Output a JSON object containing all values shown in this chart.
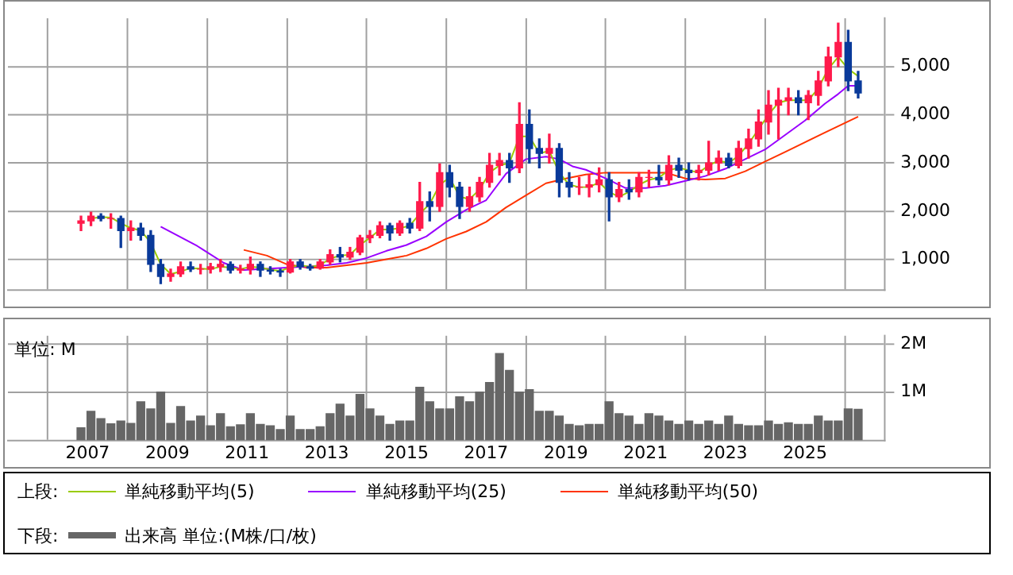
{
  "chart_data": [
    {
      "type": "candlestick",
      "legend_title": "上段:",
      "legend": "bottom",
      "grid": true,
      "tick_labels": "y",
      "marker": "none",
      "xlim": [
        "2005",
        "2027"
      ],
      "xticks": [
        "2007",
        "2009",
        "2011",
        "2013",
        "2015",
        "2017",
        "2019",
        "2021",
        "2023",
        "2025"
      ],
      "ylim": [
        370,
        6000
      ],
      "yticks": [
        {
          "value": 1000,
          "label": "1,000"
        },
        {
          "value": 2000,
          "label": "2,000"
        },
        {
          "value": 3000,
          "label": "3,000"
        },
        {
          "value": 4000,
          "label": "4,000"
        },
        {
          "value": 5000,
          "label": "5,000"
        }
      ],
      "x": [
        "2006-11",
        "2007-02",
        "2007-05",
        "2007-08",
        "2007-11",
        "2008-02",
        "2008-05",
        "2008-08",
        "2008-11",
        "2009-02",
        "2009-05",
        "2009-08",
        "2009-11",
        "2010-02",
        "2010-05",
        "2010-08",
        "2010-11",
        "2011-02",
        "2011-05",
        "2011-08",
        "2011-11",
        "2012-02",
        "2012-05",
        "2012-08",
        "2012-11",
        "2013-02",
        "2013-05",
        "2013-08",
        "2013-11",
        "2014-02",
        "2014-05",
        "2014-08",
        "2014-11",
        "2015-02",
        "2015-05",
        "2015-08",
        "2015-11",
        "2016-02",
        "2016-05",
        "2016-08",
        "2016-11",
        "2017-02",
        "2017-05",
        "2017-08",
        "2017-11",
        "2018-02",
        "2018-05",
        "2018-08",
        "2018-11",
        "2019-02",
        "2019-05",
        "2019-08",
        "2019-11",
        "2020-02",
        "2020-05",
        "2020-08",
        "2020-11",
        "2021-02",
        "2021-05",
        "2021-08",
        "2021-11",
        "2022-02",
        "2022-05",
        "2022-08",
        "2022-11",
        "2023-02",
        "2023-05",
        "2023-08",
        "2023-11",
        "2024-02",
        "2024-05",
        "2024-08",
        "2024-11",
        "2025-02",
        "2025-05",
        "2025-08",
        "2025-11",
        "2026-02",
        "2026-05"
      ],
      "ohlc": [
        [
          1750,
          1900,
          1600,
          1800
        ],
        [
          1800,
          1980,
          1700,
          1900
        ],
        [
          1900,
          1950,
          1800,
          1850
        ],
        [
          1850,
          1950,
          1650,
          1850
        ],
        [
          1850,
          1900,
          1250,
          1600
        ],
        [
          1600,
          1800,
          1400,
          1650
        ],
        [
          1650,
          1750,
          1400,
          1500
        ],
        [
          1500,
          1600,
          750,
          900
        ],
        [
          900,
          1000,
          500,
          650
        ],
        [
          650,
          800,
          550,
          700
        ],
        [
          700,
          950,
          650,
          850
        ],
        [
          850,
          950,
          750,
          800
        ],
        [
          800,
          900,
          700,
          800
        ],
        [
          800,
          920,
          720,
          850
        ],
        [
          850,
          1000,
          750,
          900
        ],
        [
          900,
          950,
          720,
          780
        ],
        [
          780,
          880,
          720,
          800
        ],
        [
          800,
          1050,
          700,
          900
        ],
        [
          900,
          950,
          650,
          780
        ],
        [
          780,
          850,
          700,
          760
        ],
        [
          760,
          800,
          650,
          740
        ],
        [
          740,
          1000,
          720,
          950
        ],
        [
          950,
          1000,
          800,
          850
        ],
        [
          850,
          900,
          780,
          820
        ],
        [
          820,
          1000,
          800,
          950
        ],
        [
          950,
          1200,
          900,
          1100
        ],
        [
          1100,
          1250,
          950,
          1050
        ],
        [
          1050,
          1250,
          1000,
          1150
        ],
        [
          1150,
          1500,
          1100,
          1450
        ],
        [
          1450,
          1600,
          1350,
          1500
        ],
        [
          1500,
          1780,
          1450,
          1700
        ],
        [
          1700,
          1750,
          1400,
          1550
        ],
        [
          1550,
          1800,
          1500,
          1750
        ],
        [
          1750,
          1850,
          1550,
          1650
        ],
        [
          1650,
          2600,
          1600,
          2200
        ],
        [
          2200,
          2400,
          1800,
          2100
        ],
        [
          2100,
          2980,
          2000,
          2800
        ],
        [
          2800,
          2950,
          2300,
          2500
        ],
        [
          2500,
          2600,
          1850,
          2100
        ],
        [
          2100,
          2500,
          2000,
          2300
        ],
        [
          2300,
          2700,
          2200,
          2600
        ],
        [
          2600,
          3200,
          2500,
          2950
        ],
        [
          2950,
          3200,
          2750,
          3050
        ],
        [
          3050,
          3200,
          2600,
          2900
        ],
        [
          2900,
          4250,
          2800,
          3800
        ],
        [
          3800,
          4100,
          3000,
          3300
        ],
        [
          3300,
          3500,
          2900,
          3200
        ],
        [
          3200,
          3600,
          3000,
          3300
        ],
        [
          3300,
          3400,
          2300,
          2600
        ],
        [
          2600,
          2800,
          2300,
          2500
        ],
        [
          2500,
          2700,
          2350,
          2500
        ],
        [
          2500,
          2750,
          2300,
          2550
        ],
        [
          2550,
          2900,
          2400,
          2650
        ],
        [
          2650,
          2800,
          1800,
          2300
        ],
        [
          2300,
          2600,
          2200,
          2450
        ],
        [
          2450,
          2650,
          2250,
          2400
        ],
        [
          2400,
          2800,
          2300,
          2700
        ],
        [
          2700,
          2850,
          2500,
          2700
        ],
        [
          2700,
          2950,
          2550,
          2650
        ],
        [
          2650,
          3150,
          2550,
          2950
        ],
        [
          2950,
          3100,
          2700,
          2850
        ],
        [
          2850,
          3000,
          2650,
          2800
        ],
        [
          2800,
          2950,
          2650,
          2850
        ],
        [
          2850,
          3450,
          2750,
          3000
        ],
        [
          3000,
          3250,
          2850,
          3100
        ],
        [
          3100,
          3200,
          2900,
          2950
        ],
        [
          2950,
          3450,
          2900,
          3300
        ],
        [
          3300,
          3700,
          3100,
          3500
        ],
        [
          3500,
          4100,
          3350,
          3850
        ],
        [
          3850,
          4500,
          3600,
          4200
        ],
        [
          4200,
          4550,
          3500,
          4300
        ],
        [
          4300,
          4550,
          4000,
          4350
        ],
        [
          4350,
          4500,
          4000,
          4250
        ],
        [
          4250,
          4500,
          3900,
          4400
        ],
        [
          4400,
          4900,
          4200,
          4700
        ],
        [
          4700,
          5400,
          4600,
          5200
        ],
        [
          5200,
          5900,
          5000,
          5500
        ],
        [
          5500,
          5750,
          4500,
          4700
        ],
        [
          4700,
          4900,
          4350,
          4450
        ]
      ],
      "series": [
        {
          "name": "単純移動平均(5)",
          "type": "line",
          "color": "#99cc00",
          "x": [
            "2007-02",
            "2007-05",
            "2007-08",
            "2007-11",
            "2008-02",
            "2008-05",
            "2008-08",
            "2008-11",
            "2009-02",
            "2009-05",
            "2009-08",
            "2009-11",
            "2010-02",
            "2010-05",
            "2010-08",
            "2010-11",
            "2011-02",
            "2011-05",
            "2011-08",
            "2011-11",
            "2012-02",
            "2012-05",
            "2012-08",
            "2012-11",
            "2013-02",
            "2013-05",
            "2013-08",
            "2013-11",
            "2014-02",
            "2014-05",
            "2014-08",
            "2014-11",
            "2015-02",
            "2015-05",
            "2015-08",
            "2015-11",
            "2016-02",
            "2016-05",
            "2016-08",
            "2016-11",
            "2017-02",
            "2017-05",
            "2017-08",
            "2017-11",
            "2018-02",
            "2018-05",
            "2018-08",
            "2018-11",
            "2019-02",
            "2019-05",
            "2019-08",
            "2019-11",
            "2020-02",
            "2020-05",
            "2020-08",
            "2020-11",
            "2021-02",
            "2021-05",
            "2021-08",
            "2021-11",
            "2022-02",
            "2022-05",
            "2022-08",
            "2022-11",
            "2023-02",
            "2023-05",
            "2023-08",
            "2023-11",
            "2024-02",
            "2024-05",
            "2024-08",
            "2024-11",
            "2025-02",
            "2025-05",
            "2025-08",
            "2025-11",
            "2026-02",
            "2026-05"
          ],
          "values": [
            1850,
            1880,
            1870,
            1750,
            1650,
            1600,
            1350,
            900,
            700,
            750,
            820,
            810,
            800,
            850,
            830,
            800,
            850,
            830,
            790,
            760,
            840,
            880,
            850,
            880,
            1020,
            1080,
            1100,
            1300,
            1450,
            1620,
            1620,
            1650,
            1700,
            1950,
            2150,
            2550,
            2700,
            2300,
            2250,
            2450,
            2800,
            2950,
            3000,
            3550,
            3550,
            3200,
            3250,
            2800,
            2550,
            2500,
            2500,
            2600,
            2400,
            2300,
            2400,
            2550,
            2650,
            2700,
            2850,
            2900,
            2850,
            2800,
            2950,
            3050,
            3000,
            3150,
            3400,
            3700,
            4000,
            4250,
            4300,
            4300,
            4300,
            4550,
            4950,
            5200,
            4950,
            4800
          ]
        },
        {
          "name": "単純移動平均(25)",
          "type": "line",
          "color": "#9900ff",
          "x": [
            "2008-11",
            "2009-10",
            "2010-06",
            "2010-12",
            "2012-01",
            "2013-01",
            "2013-07",
            "2014-01",
            "2014-07",
            "2015-01",
            "2015-07",
            "2016-01",
            "2016-07",
            "2017-01",
            "2017-07",
            "2018-01",
            "2018-07",
            "2018-11",
            "2019-03",
            "2019-07",
            "2020-01",
            "2020-07",
            "2021-01",
            "2021-07",
            "2022-01",
            "2022-07",
            "2023-01",
            "2023-07",
            "2024-01",
            "2024-07",
            "2025-01",
            "2025-07",
            "2025-11",
            "2026-02",
            "2026-05"
          ],
          "values": [
            1680,
            1280,
            930,
            780,
            830,
            880,
            930,
            1030,
            1180,
            1300,
            1480,
            1780,
            2030,
            2230,
            2780,
            3080,
            3130,
            3080,
            2930,
            2860,
            2680,
            2480,
            2480,
            2530,
            2630,
            2730,
            2880,
            3080,
            3280,
            3580,
            3880,
            4230,
            4430,
            4600,
            4600
          ]
        },
        {
          "name": "単純移動平均(50)",
          "type": "line",
          "color": "#ff3300",
          "x": [
            "2010-12",
            "2011-07",
            "2012-01",
            "2012-07",
            "2013-01",
            "2014-01",
            "2015-01",
            "2015-07",
            "2016-01",
            "2016-07",
            "2017-01",
            "2017-07",
            "2018-01",
            "2018-07",
            "2019-01",
            "2019-07",
            "2020-01",
            "2021-01",
            "2021-07",
            "2022-01",
            "2022-07",
            "2023-01",
            "2023-07",
            "2024-01",
            "2024-07",
            "2025-01",
            "2025-07",
            "2026-01",
            "2026-05"
          ],
          "values": [
            1200,
            1080,
            900,
            830,
            830,
            930,
            1080,
            1230,
            1430,
            1580,
            1780,
            2080,
            2330,
            2580,
            2680,
            2760,
            2800,
            2800,
            2800,
            2680,
            2660,
            2680,
            2830,
            3030,
            3230,
            3430,
            3630,
            3830,
            3960
          ]
        }
      ]
    },
    {
      "type": "bar",
      "legend_title": "下段:",
      "legend": "bottom",
      "grid": true,
      "annotations": [
        "単位: M"
      ],
      "xlim": [
        "2005",
        "2027"
      ],
      "xticks": [
        "2007",
        "2009",
        "2011",
        "2013",
        "2015",
        "2017",
        "2019",
        "2021",
        "2023",
        "2025"
      ],
      "ylim": [
        0,
        2.17
      ],
      "yticks": [
        {
          "value": 1,
          "label": "1M"
        },
        {
          "value": 2,
          "label": "2M"
        }
      ],
      "x": [
        "2006-11",
        "2007-02",
        "2007-05",
        "2007-08",
        "2007-11",
        "2008-02",
        "2008-05",
        "2008-08",
        "2008-11",
        "2009-02",
        "2009-05",
        "2009-08",
        "2009-11",
        "2010-02",
        "2010-05",
        "2010-08",
        "2010-11",
        "2011-02",
        "2011-05",
        "2011-08",
        "2011-11",
        "2012-02",
        "2012-05",
        "2012-08",
        "2012-11",
        "2013-02",
        "2013-05",
        "2013-08",
        "2013-11",
        "2014-02",
        "2014-05",
        "2014-08",
        "2014-11",
        "2015-02",
        "2015-05",
        "2015-08",
        "2015-11",
        "2016-02",
        "2016-05",
        "2016-08",
        "2016-11",
        "2017-02",
        "2017-05",
        "2017-08",
        "2017-11",
        "2018-02",
        "2018-05",
        "2018-08",
        "2018-11",
        "2019-02",
        "2019-05",
        "2019-08",
        "2019-11",
        "2020-02",
        "2020-05",
        "2020-08",
        "2020-11",
        "2021-02",
        "2021-05",
        "2021-08",
        "2021-11",
        "2022-02",
        "2022-05",
        "2022-08",
        "2022-11",
        "2023-02",
        "2023-05",
        "2023-08",
        "2023-11",
        "2024-02",
        "2024-05",
        "2024-08",
        "2024-11",
        "2025-02",
        "2025-05",
        "2025-08",
        "2025-11",
        "2026-02",
        "2026-05"
      ],
      "series": [
        {
          "name": "出来高 単位:(M株/口/枚)",
          "color": "#666666",
          "values": [
            0.26,
            0.6,
            0.45,
            0.34,
            0.4,
            0.35,
            0.8,
            0.65,
            1.0,
            0.35,
            0.7,
            0.4,
            0.5,
            0.3,
            0.55,
            0.28,
            0.32,
            0.55,
            0.33,
            0.3,
            0.22,
            0.5,
            0.22,
            0.22,
            0.28,
            0.55,
            0.75,
            0.5,
            0.95,
            0.65,
            0.5,
            0.33,
            0.4,
            0.4,
            1.1,
            0.8,
            0.65,
            0.65,
            0.9,
            0.8,
            1.0,
            1.2,
            1.8,
            1.45,
            1.0,
            1.05,
            0.6,
            0.6,
            0.5,
            0.33,
            0.3,
            0.33,
            0.33,
            0.8,
            0.55,
            0.5,
            0.33,
            0.55,
            0.5,
            0.4,
            0.33,
            0.4,
            0.33,
            0.4,
            0.33,
            0.5,
            0.33,
            0.3,
            0.3,
            0.4,
            0.33,
            0.36,
            0.33,
            0.33,
            0.5,
            0.4,
            0.4,
            0.65,
            0.64
          ]
        }
      ]
    }
  ]
}
